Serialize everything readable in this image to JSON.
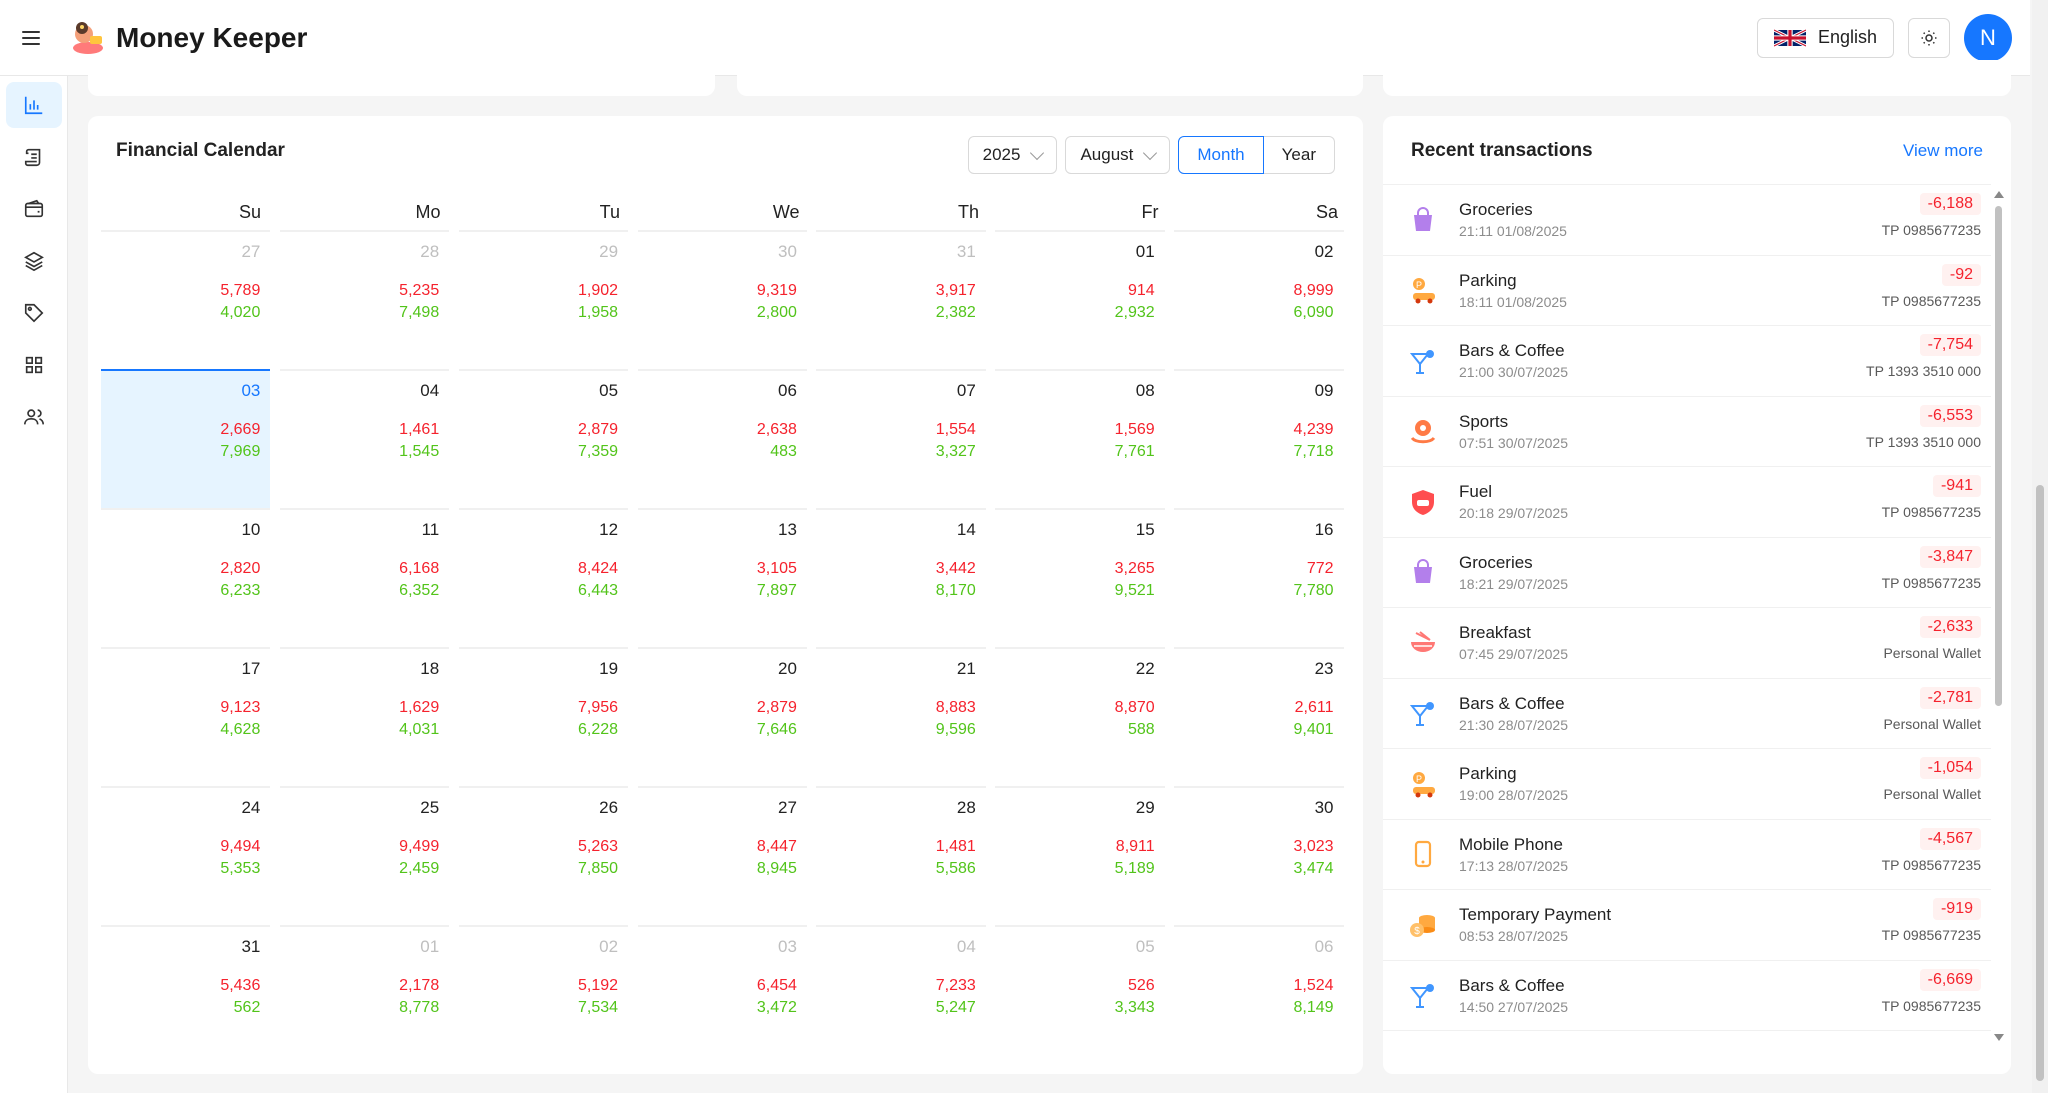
{
  "app": {
    "title": "Money Keeper",
    "language": "English",
    "avatar_initial": "N"
  },
  "sidebar": {
    "items": [
      {
        "name": "dashboard",
        "icon": "bar-chart-icon",
        "active": true
      },
      {
        "name": "transactions",
        "icon": "scroll-icon"
      },
      {
        "name": "wallets",
        "icon": "wallet-icon"
      },
      {
        "name": "layers",
        "icon": "layers-icon"
      },
      {
        "name": "categories",
        "icon": "tag-icon"
      },
      {
        "name": "apps",
        "icon": "grid-icon"
      },
      {
        "name": "users",
        "icon": "users-icon"
      }
    ]
  },
  "calendar": {
    "title": "Financial Calendar",
    "year": "2025",
    "month": "August",
    "view_month": "Month",
    "view_year": "Year",
    "weekdays": [
      "Su",
      "Mo",
      "Tu",
      "We",
      "Th",
      "Fr",
      "Sa"
    ],
    "weeks": [
      [
        {
          "day": "27",
          "exp": "5,789",
          "inc": "4,020",
          "other": true
        },
        {
          "day": "28",
          "exp": "5,235",
          "inc": "7,498",
          "other": true
        },
        {
          "day": "29",
          "exp": "1,902",
          "inc": "1,958",
          "other": true
        },
        {
          "day": "30",
          "exp": "9,319",
          "inc": "2,800",
          "other": true
        },
        {
          "day": "31",
          "exp": "3,917",
          "inc": "2,382",
          "other": true
        },
        {
          "day": "01",
          "exp": "914",
          "inc": "2,932"
        },
        {
          "day": "02",
          "exp": "8,999",
          "inc": "6,090"
        }
      ],
      [
        {
          "day": "03",
          "exp": "2,669",
          "inc": "7,969",
          "today": true
        },
        {
          "day": "04",
          "exp": "1,461",
          "inc": "1,545"
        },
        {
          "day": "05",
          "exp": "2,879",
          "inc": "7,359"
        },
        {
          "day": "06",
          "exp": "2,638",
          "inc": "483"
        },
        {
          "day": "07",
          "exp": "1,554",
          "inc": "3,327"
        },
        {
          "day": "08",
          "exp": "1,569",
          "inc": "7,761"
        },
        {
          "day": "09",
          "exp": "4,239",
          "inc": "7,718"
        }
      ],
      [
        {
          "day": "10",
          "exp": "2,820",
          "inc": "6,233"
        },
        {
          "day": "11",
          "exp": "6,168",
          "inc": "6,352"
        },
        {
          "day": "12",
          "exp": "8,424",
          "inc": "6,443"
        },
        {
          "day": "13",
          "exp": "3,105",
          "inc": "7,897"
        },
        {
          "day": "14",
          "exp": "3,442",
          "inc": "8,170"
        },
        {
          "day": "15",
          "exp": "3,265",
          "inc": "9,521"
        },
        {
          "day": "16",
          "exp": "772",
          "inc": "7,780"
        }
      ],
      [
        {
          "day": "17",
          "exp": "9,123",
          "inc": "4,628"
        },
        {
          "day": "18",
          "exp": "1,629",
          "inc": "4,031"
        },
        {
          "day": "19",
          "exp": "7,956",
          "inc": "6,228"
        },
        {
          "day": "20",
          "exp": "2,879",
          "inc": "7,646"
        },
        {
          "day": "21",
          "exp": "8,883",
          "inc": "9,596"
        },
        {
          "day": "22",
          "exp": "8,870",
          "inc": "588"
        },
        {
          "day": "23",
          "exp": "2,611",
          "inc": "9,401"
        }
      ],
      [
        {
          "day": "24",
          "exp": "9,494",
          "inc": "5,353"
        },
        {
          "day": "25",
          "exp": "9,499",
          "inc": "2,459"
        },
        {
          "day": "26",
          "exp": "5,263",
          "inc": "7,850"
        },
        {
          "day": "27",
          "exp": "8,447",
          "inc": "8,945"
        },
        {
          "day": "28",
          "exp": "1,481",
          "inc": "5,586"
        },
        {
          "day": "29",
          "exp": "8,911",
          "inc": "5,189"
        },
        {
          "day": "30",
          "exp": "3,023",
          "inc": "3,474"
        }
      ],
      [
        {
          "day": "31",
          "exp": "5,436",
          "inc": "562"
        },
        {
          "day": "01",
          "exp": "2,178",
          "inc": "8,778",
          "other": true
        },
        {
          "day": "02",
          "exp": "5,192",
          "inc": "7,534",
          "other": true
        },
        {
          "day": "03",
          "exp": "6,454",
          "inc": "3,472",
          "other": true
        },
        {
          "day": "04",
          "exp": "7,233",
          "inc": "5,247",
          "other": true
        },
        {
          "day": "05",
          "exp": "526",
          "inc": "3,343",
          "other": true
        },
        {
          "day": "06",
          "exp": "1,524",
          "inc": "8,149",
          "other": true
        }
      ]
    ]
  },
  "transactions": {
    "title": "Recent transactions",
    "view_more": "View more",
    "items": [
      {
        "category": "Groceries",
        "datetime": "21:11 01/08/2025",
        "amount": "-6,188",
        "wallet": "TP 0985677235",
        "icon": "shopping-bag-icon",
        "color": "#b37feb"
      },
      {
        "category": "Parking",
        "datetime": "18:11 01/08/2025",
        "amount": "-92",
        "wallet": "TP 0985677235",
        "icon": "parking-car-icon",
        "color": "#ffa940"
      },
      {
        "category": "Bars & Coffee",
        "datetime": "21:00 30/07/2025",
        "amount": "-7,754",
        "wallet": "TP 1393 3510 000",
        "icon": "cocktail-icon",
        "color": "#4096ff"
      },
      {
        "category": "Sports",
        "datetime": "07:51 30/07/2025",
        "amount": "-6,553",
        "wallet": "TP 1393 3510 000",
        "icon": "sports-icon",
        "color": "#ff7a45"
      },
      {
        "category": "Fuel",
        "datetime": "20:18 29/07/2025",
        "amount": "-941",
        "wallet": "TP 0985677235",
        "icon": "car-shield-icon",
        "color": "#ff4d4f"
      },
      {
        "category": "Groceries",
        "datetime": "18:21 29/07/2025",
        "amount": "-3,847",
        "wallet": "TP 0985677235",
        "icon": "shopping-bag-icon",
        "color": "#b37feb"
      },
      {
        "category": "Breakfast",
        "datetime": "07:45 29/07/2025",
        "amount": "-2,633",
        "wallet": "Personal Wallet",
        "icon": "bowl-icon",
        "color": "#ff7875"
      },
      {
        "category": "Bars & Coffee",
        "datetime": "21:30 28/07/2025",
        "amount": "-2,781",
        "wallet": "Personal Wallet",
        "icon": "cocktail-icon",
        "color": "#4096ff"
      },
      {
        "category": "Parking",
        "datetime": "19:00 28/07/2025",
        "amount": "-1,054",
        "wallet": "Personal Wallet",
        "icon": "parking-car-icon",
        "color": "#ffa940"
      },
      {
        "category": "Mobile Phone",
        "datetime": "17:13 28/07/2025",
        "amount": "-4,567",
        "wallet": "TP 0985677235",
        "icon": "phone-icon",
        "color": "#ffa940"
      },
      {
        "category": "Temporary Payment",
        "datetime": "08:53 28/07/2025",
        "amount": "-919",
        "wallet": "TP 0985677235",
        "icon": "coins-icon",
        "color": "#ffa940"
      },
      {
        "category": "Bars & Coffee",
        "datetime": "14:50 27/07/2025",
        "amount": "-6,669",
        "wallet": "TP 0985677235",
        "icon": "cocktail-icon",
        "color": "#4096ff"
      }
    ]
  }
}
